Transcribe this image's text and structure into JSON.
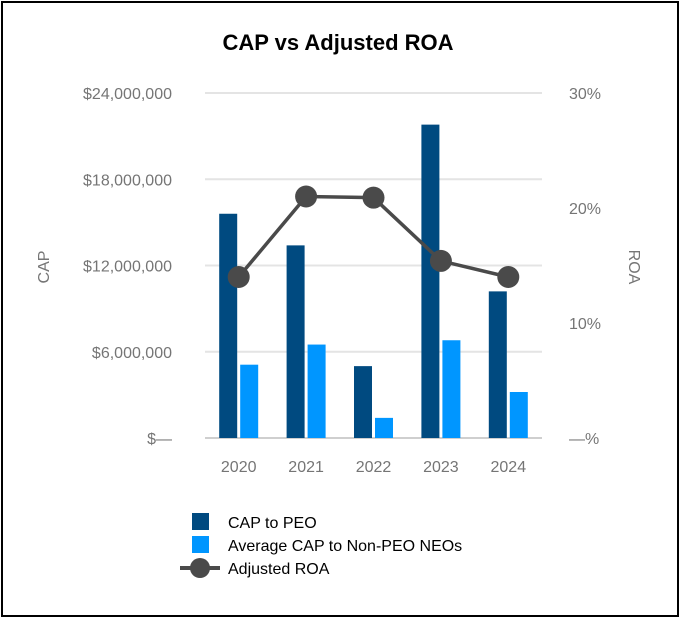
{
  "chart_data": {
    "type": "bar",
    "title": "CAP vs Adjusted ROA",
    "categories": [
      "2020",
      "2021",
      "2022",
      "2023",
      "2024"
    ],
    "series": [
      {
        "name": "CAP to PEO",
        "kind": "bar",
        "axis": "left",
        "color": "#004a80",
        "values": [
          15600000,
          13400000,
          5000000,
          21800000,
          10200000
        ]
      },
      {
        "name": "Average CAP to Non-PEO NEOs",
        "kind": "bar",
        "axis": "left",
        "color": "#0096ff",
        "values": [
          5100000,
          6500000,
          1400000,
          6800000,
          3200000
        ]
      },
      {
        "name": "Adjusted ROA",
        "kind": "line",
        "axis": "right",
        "color": "#4a4a4a",
        "values": [
          14.0,
          21.0,
          20.9,
          15.4,
          14.0
        ]
      }
    ],
    "ylabel": "CAP",
    "y2label": "ROA",
    "ylim": [
      0,
      24000000
    ],
    "y2lim": [
      0,
      30
    ],
    "yticks": [
      0,
      6000000,
      12000000,
      18000000,
      24000000
    ],
    "ytick_labels": [
      "$—",
      "$6,000,000",
      "$12,000,000",
      "$18,000,000",
      "$24,000,000"
    ],
    "y2ticks": [
      0,
      10,
      20,
      30
    ],
    "y2tick_labels": [
      "—%",
      "10%",
      "20%",
      "30%"
    ],
    "grid": true,
    "legend": "bottom"
  }
}
